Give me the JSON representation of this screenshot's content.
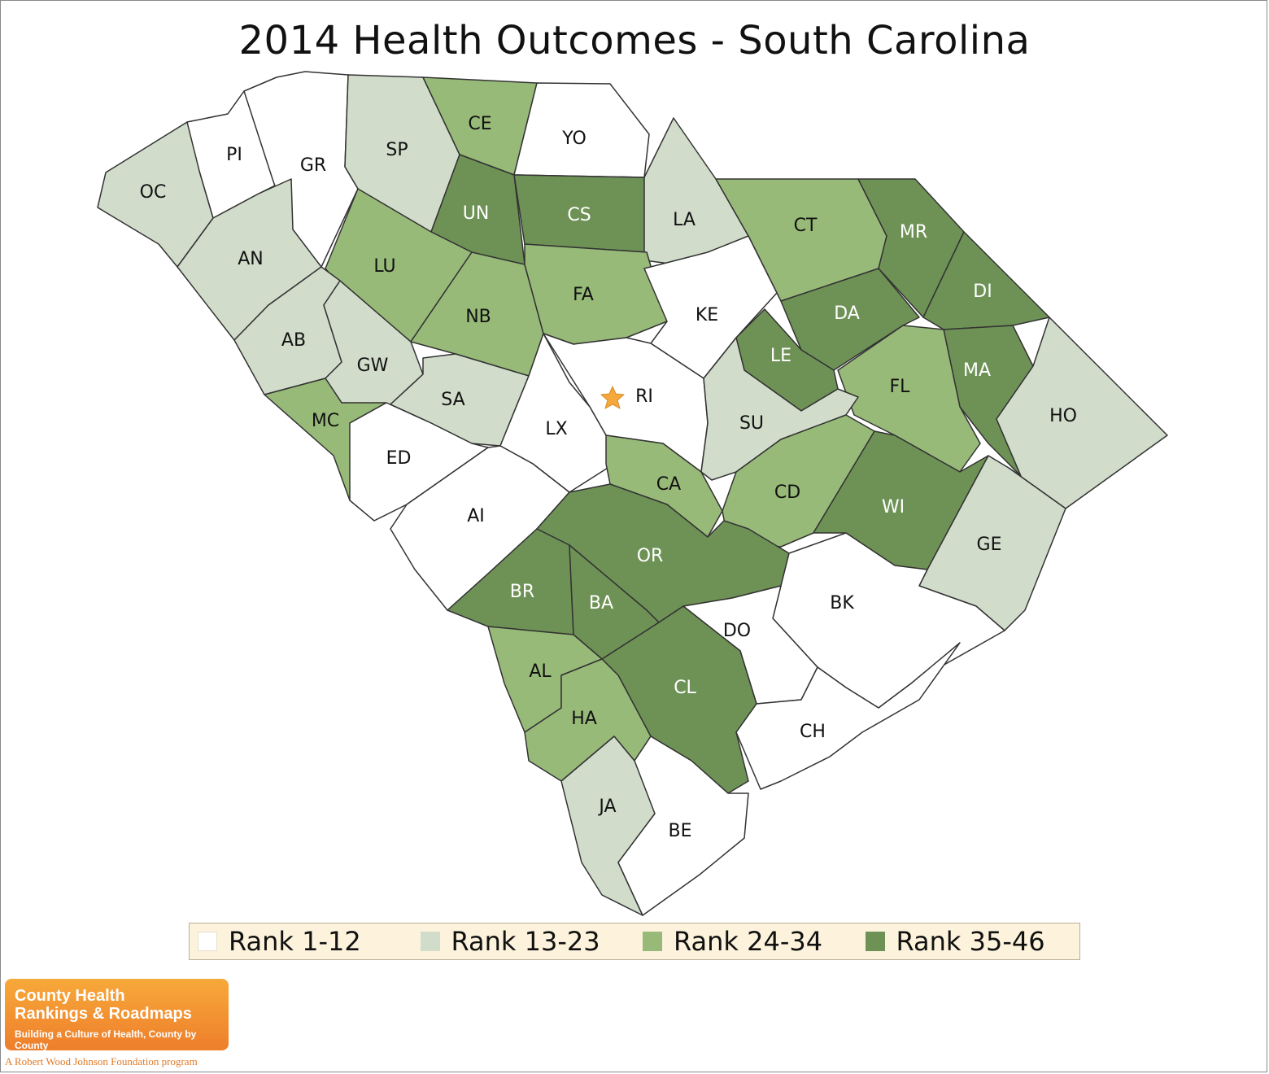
{
  "title": "2014 Health Outcomes - South Carolina",
  "colors": {
    "rank_1_12": "#ffffff",
    "rank_13_23": "#d1dccb",
    "rank_24_34": "#98ba79",
    "rank_35_46": "#6e9256",
    "label_dark": "#111111",
    "label_light": "#ffffff",
    "capital_star": "#f5a93d"
  },
  "legend": [
    {
      "label": "Rank 1-12",
      "color": "#ffffff"
    },
    {
      "label": "Rank 13-23",
      "color": "#d1dccb"
    },
    {
      "label": "Rank 24-34",
      "color": "#98ba79"
    },
    {
      "label": "Rank 35-46",
      "color": "#6e9256"
    }
  ],
  "counties": [
    {
      "code": "OC",
      "rank_group": "13-23"
    },
    {
      "code": "PI",
      "rank_group": "1-12"
    },
    {
      "code": "GR",
      "rank_group": "1-12"
    },
    {
      "code": "SP",
      "rank_group": "13-23"
    },
    {
      "code": "CE",
      "rank_group": "24-34"
    },
    {
      "code": "YO",
      "rank_group": "1-12"
    },
    {
      "code": "AN",
      "rank_group": "13-23"
    },
    {
      "code": "UN",
      "rank_group": "35-46"
    },
    {
      "code": "CS",
      "rank_group": "35-46"
    },
    {
      "code": "LA",
      "rank_group": "13-23"
    },
    {
      "code": "CT",
      "rank_group": "24-34"
    },
    {
      "code": "MR",
      "rank_group": "35-46"
    },
    {
      "code": "LU",
      "rank_group": "24-34"
    },
    {
      "code": "NB",
      "rank_group": "24-34"
    },
    {
      "code": "FA",
      "rank_group": "24-34"
    },
    {
      "code": "KE",
      "rank_group": "1-12"
    },
    {
      "code": "DA",
      "rank_group": "35-46"
    },
    {
      "code": "DI",
      "rank_group": "35-46"
    },
    {
      "code": "AB",
      "rank_group": "13-23"
    },
    {
      "code": "GW",
      "rank_group": "13-23"
    },
    {
      "code": "LE",
      "rank_group": "35-46"
    },
    {
      "code": "MA",
      "rank_group": "35-46"
    },
    {
      "code": "RI",
      "rank_group": "1-12"
    },
    {
      "code": "SA",
      "rank_group": "13-23"
    },
    {
      "code": "FL",
      "rank_group": "24-34"
    },
    {
      "code": "MC",
      "rank_group": "24-34"
    },
    {
      "code": "LX",
      "rank_group": "1-12"
    },
    {
      "code": "SU",
      "rank_group": "13-23"
    },
    {
      "code": "HO",
      "rank_group": "13-23"
    },
    {
      "code": "ED",
      "rank_group": "1-12"
    },
    {
      "code": "CA",
      "rank_group": "24-34"
    },
    {
      "code": "CD",
      "rank_group": "24-34"
    },
    {
      "code": "WI",
      "rank_group": "35-46"
    },
    {
      "code": "AI",
      "rank_group": "1-12"
    },
    {
      "code": "GE",
      "rank_group": "13-23"
    },
    {
      "code": "OR",
      "rank_group": "35-46"
    },
    {
      "code": "BR",
      "rank_group": "35-46"
    },
    {
      "code": "BA",
      "rank_group": "35-46"
    },
    {
      "code": "BK",
      "rank_group": "1-12"
    },
    {
      "code": "DO",
      "rank_group": "1-12"
    },
    {
      "code": "AL",
      "rank_group": "24-34"
    },
    {
      "code": "CL",
      "rank_group": "35-46"
    },
    {
      "code": "HA",
      "rank_group": "24-34"
    },
    {
      "code": "CH",
      "rank_group": "1-12"
    },
    {
      "code": "JA",
      "rank_group": "13-23"
    },
    {
      "code": "BE",
      "rank_group": "1-12"
    }
  ],
  "logo": {
    "line1": "County Health",
    "line2": "Rankings & Roadmaps",
    "tagline": "Building a Culture of Health, County by County",
    "sub": "A Robert Wood Johnson Foundation program"
  }
}
